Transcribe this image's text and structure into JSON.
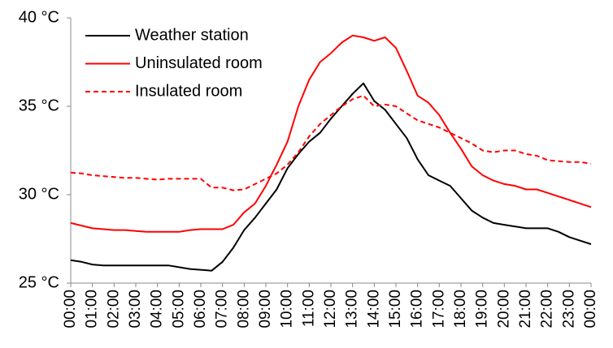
{
  "chart_data": {
    "type": "line",
    "categories": [
      "00:00",
      null,
      "01:00",
      null,
      "02:00",
      null,
      "03:00",
      null,
      "04:00",
      null,
      "05:00",
      null,
      "06:00",
      null,
      "07:00",
      null,
      "08:00",
      null,
      "09:00",
      null,
      "10:00",
      null,
      "11:00",
      null,
      "12:00",
      null,
      "13:00",
      null,
      "14:00",
      null,
      "15:00",
      null,
      "16:00",
      null,
      "17:00",
      null,
      "18:00",
      null,
      "19:00",
      null,
      "20:00",
      null,
      "21:00",
      null,
      "22:00",
      null,
      "23:00",
      null,
      "00:00"
    ],
    "series": [
      {
        "name": "Weather station",
        "color": "#000000",
        "linestyle": "solid",
        "values": [
          26.3,
          26.2,
          26.05,
          26.0,
          26.0,
          26.0,
          26.0,
          26.0,
          26.0,
          26.0,
          25.9,
          25.8,
          25.75,
          25.7,
          26.2,
          27.0,
          28.0,
          28.7,
          29.5,
          30.3,
          31.5,
          32.3,
          33.0,
          33.5,
          34.3,
          35.0,
          35.7,
          36.3,
          35.3,
          34.8,
          34.0,
          33.2,
          32.0,
          31.1,
          30.8,
          30.5,
          29.8,
          29.1,
          28.7,
          28.4,
          28.3,
          28.2,
          28.1,
          28.1,
          28.1,
          27.9,
          27.6,
          27.4,
          27.2
        ]
      },
      {
        "name": "Uninsulated room",
        "color": "#ff0000",
        "linestyle": "solid",
        "values": [
          28.4,
          28.25,
          28.1,
          28.05,
          28.0,
          28.0,
          27.95,
          27.9,
          27.9,
          27.9,
          27.9,
          28.0,
          28.05,
          28.05,
          28.05,
          28.3,
          29.0,
          29.5,
          30.5,
          31.7,
          33.0,
          35.0,
          36.5,
          37.5,
          38.0,
          38.6,
          39.0,
          38.9,
          38.7,
          38.9,
          38.3,
          37.0,
          35.6,
          35.2,
          34.5,
          33.5,
          32.6,
          31.6,
          31.1,
          30.8,
          30.6,
          30.5,
          30.3,
          30.3,
          30.1,
          29.9,
          29.7,
          29.5,
          29.3
        ]
      },
      {
        "name": "Insulated room",
        "color": "#ff0000",
        "linestyle": "dashed",
        "values": [
          31.25,
          31.2,
          31.1,
          31.05,
          31.0,
          30.95,
          30.95,
          30.9,
          30.85,
          30.9,
          30.9,
          30.9,
          30.9,
          30.4,
          30.4,
          30.25,
          30.3,
          30.6,
          30.9,
          31.2,
          31.7,
          32.4,
          33.3,
          34.0,
          34.5,
          35.0,
          35.4,
          35.6,
          35.0,
          35.1,
          35.0,
          34.6,
          34.2,
          34.0,
          33.8,
          33.5,
          33.2,
          32.9,
          32.5,
          32.4,
          32.5,
          32.5,
          32.3,
          32.2,
          31.95,
          31.9,
          31.85,
          31.85,
          31.75
        ]
      }
    ],
    "ylim": [
      25,
      40
    ],
    "yticks": [
      {
        "value": 25,
        "label": "25 °C"
      },
      {
        "value": 30,
        "label": "30 °C"
      },
      {
        "value": 35,
        "label": "35 °C"
      },
      {
        "value": 40,
        "label": "40 °C"
      }
    ],
    "grid": false,
    "legend": "upper left"
  }
}
